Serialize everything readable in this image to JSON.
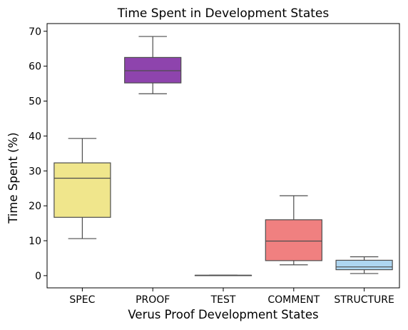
{
  "chart_data": {
    "type": "box",
    "title": "Time Spent in Development States",
    "xlabel": "Verus Proof Development States",
    "ylabel": "Time Spent (%)",
    "ylim": [
      -3.5,
      72.2
    ],
    "yticks": [
      0,
      10,
      20,
      30,
      40,
      50,
      60,
      70
    ],
    "grid": false,
    "categories": [
      "SPEC",
      "PROOF",
      "TEST",
      "COMMENT",
      "STRUCTURE"
    ],
    "boxes": [
      {
        "category": "SPEC",
        "whisker_low": 10.6,
        "q1": 16.7,
        "median": 27.9,
        "q3": 32.3,
        "whisker_high": 39.3,
        "color": "#f0e68c"
      },
      {
        "category": "PROOF",
        "whisker_low": 52.1,
        "q1": 55.2,
        "median": 58.7,
        "q3": 62.5,
        "whisker_high": 68.5,
        "color": "#8e44ad"
      },
      {
        "category": "TEST",
        "whisker_low": 0.1,
        "q1": 0.1,
        "median": 0.1,
        "q3": 0.1,
        "whisker_high": 0.1,
        "color": "#d3d3d3"
      },
      {
        "category": "COMMENT",
        "whisker_low": 3.1,
        "q1": 4.3,
        "median": 9.9,
        "q3": 16.0,
        "whisker_high": 22.9,
        "color": "#f08080"
      },
      {
        "category": "STRUCTURE",
        "whisker_low": 0.6,
        "q1": 1.7,
        "median": 2.5,
        "q3": 4.4,
        "whisker_high": 5.4,
        "color": "#aed6f1"
      }
    ]
  }
}
